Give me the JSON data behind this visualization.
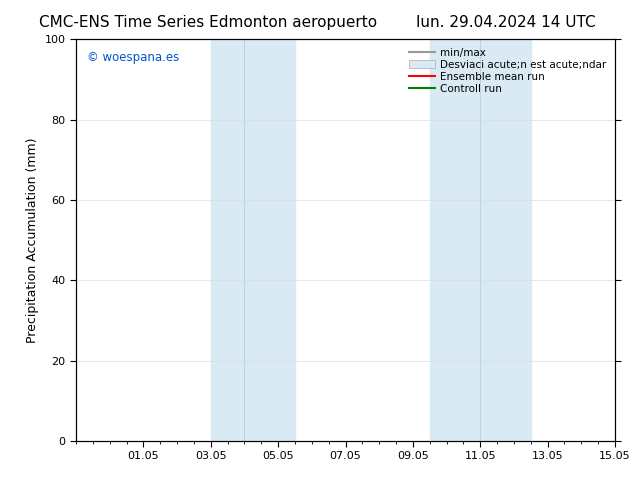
{
  "title_left": "CMC-ENS Time Series Edmonton aeropuerto",
  "title_right": "lun. 29.04.2024 14 UTC",
  "ylabel": "Precipitation Accumulation (mm)",
  "ylim": [
    0,
    100
  ],
  "yticks": [
    0,
    20,
    40,
    60,
    80,
    100
  ],
  "xtick_labels": [
    "01.05",
    "03.05",
    "05.05",
    "07.05",
    "09.05",
    "11.05",
    "13.05",
    "15.05"
  ],
  "xtick_positions": [
    2,
    4,
    6,
    8,
    10,
    12,
    14,
    16
  ],
  "xlim": [
    0,
    16
  ],
  "shaded_bands": [
    {
      "x_start": 4.0,
      "x_end": 6.5,
      "color": "#daeaf5",
      "mid": 5.0
    },
    {
      "x_start": 10.5,
      "x_end": 13.5,
      "color": "#daeaf5",
      "mid": 12.0
    }
  ],
  "watermark_text": "© woespana.es",
  "watermark_color": "#0055cc",
  "background_color": "#ffffff",
  "legend_line1_label": "min/max",
  "legend_line1_color": "#999999",
  "legend_patch_label": "Desviaci acute;n est acute;ndar",
  "legend_patch_facecolor": "#daeaf5",
  "legend_patch_edgecolor": "#aaaaaa",
  "legend_line3_label": "Ensemble mean run",
  "legend_line3_color": "red",
  "legend_line4_label": "Controll run",
  "legend_line4_color": "green",
  "title_fontsize": 11,
  "axis_fontsize": 9,
  "tick_fontsize": 8,
  "legend_fontsize": 7.5
}
